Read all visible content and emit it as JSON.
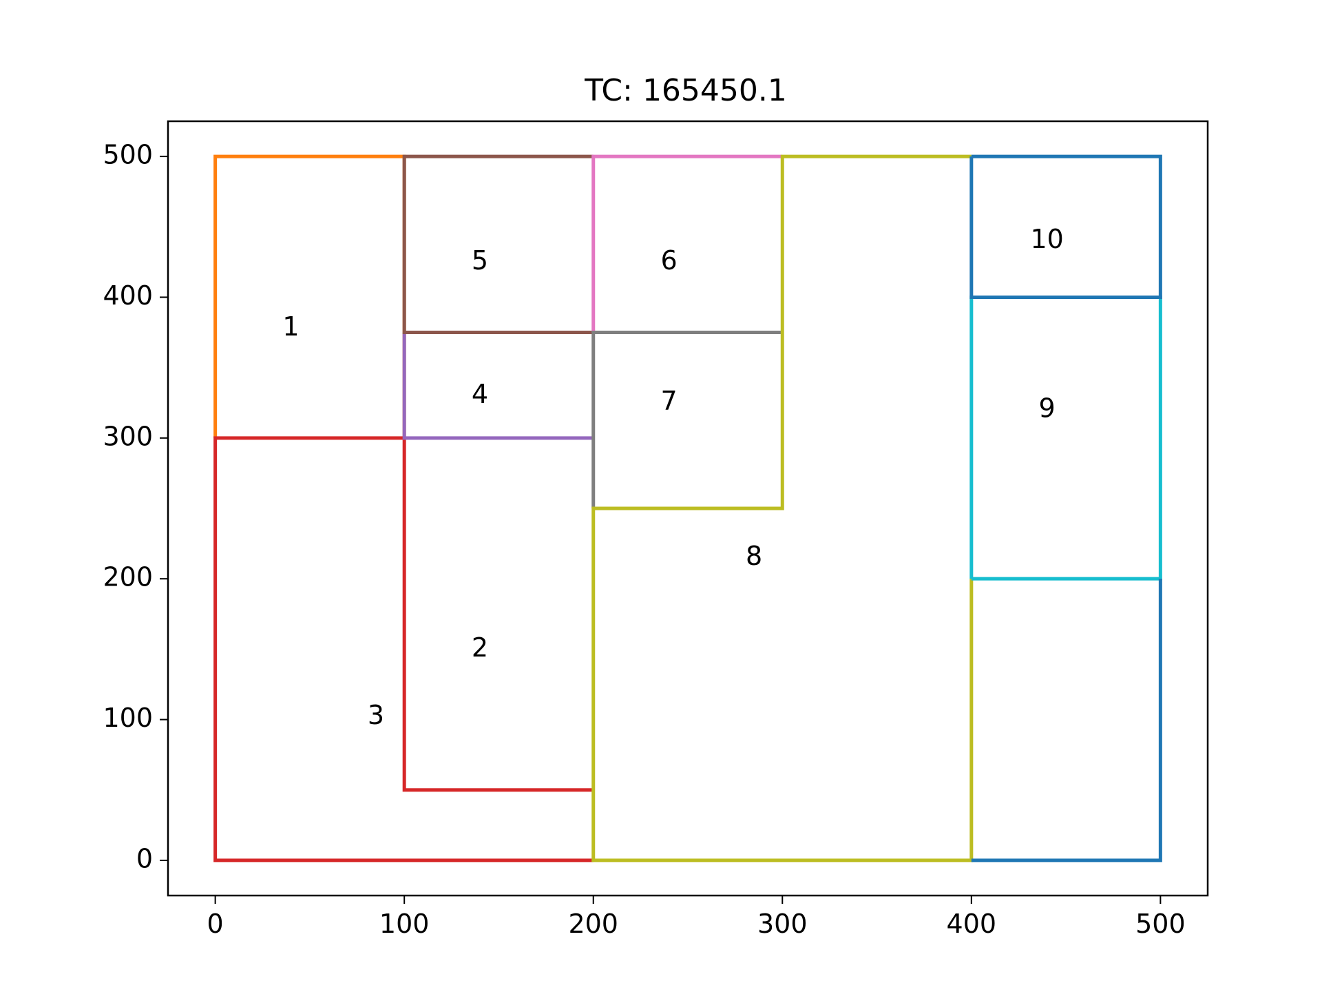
{
  "chart_data": {
    "type": "layout-plot",
    "title": "TC: 165450.1",
    "xlabel": "",
    "ylabel": "",
    "xlim": [
      -25,
      525
    ],
    "ylim": [
      -25,
      525
    ],
    "xticks": [
      0,
      100,
      200,
      300,
      400,
      500
    ],
    "yticks": [
      0,
      100,
      200,
      300,
      400,
      500
    ],
    "grid": false,
    "polygons": [
      {
        "id": "1",
        "color": "#ff7f0e",
        "points": [
          [
            0,
            300
          ],
          [
            0,
            500
          ],
          [
            100,
            500
          ],
          [
            100,
            300
          ]
        ],
        "label_pos": [
          40,
          378
        ]
      },
      {
        "id": "2",
        "color": "#d62728",
        "points": [
          [
            100,
            300
          ],
          [
            100,
            50
          ],
          [
            200,
            50
          ]
        ],
        "label_pos": [
          140,
          150
        ]
      },
      {
        "id": "3",
        "color": "#d62728",
        "points": [
          [
            100,
            300
          ],
          [
            0,
            300
          ],
          [
            0,
            0
          ],
          [
            200,
            0
          ]
        ],
        "label_pos": [
          85,
          102
        ]
      },
      {
        "id": "4",
        "color": "#9467bd",
        "points": [
          [
            100,
            375
          ],
          [
            100,
            300
          ],
          [
            200,
            300
          ]
        ],
        "label_pos": [
          140,
          330
        ]
      },
      {
        "id": "5",
        "color": "#8c564b",
        "points": [
          [
            200,
            375
          ],
          [
            100,
            375
          ],
          [
            100,
            500
          ],
          [
            200,
            500
          ]
        ],
        "label_pos": [
          140,
          425
        ]
      },
      {
        "id": "6",
        "color": "#e377c2",
        "points": [
          [
            200,
            375
          ],
          [
            200,
            500
          ],
          [
            300,
            500
          ]
        ],
        "label_pos": [
          240,
          425
        ]
      },
      {
        "id": "7",
        "color": "#7f7f7f",
        "points": [
          [
            300,
            375
          ],
          [
            200,
            375
          ],
          [
            200,
            250
          ]
        ],
        "label_pos": [
          240,
          325
        ]
      },
      {
        "id": "8",
        "color": "#bcbd22",
        "points": [
          [
            400,
            200
          ],
          [
            400,
            0
          ],
          [
            200,
            0
          ],
          [
            200,
            250
          ],
          [
            300,
            250
          ],
          [
            300,
            500
          ],
          [
            400,
            500
          ]
        ],
        "label_pos": [
          285,
          215
        ]
      },
      {
        "id": "9",
        "color": "#17becf",
        "points": [
          [
            400,
            200
          ],
          [
            400,
            400
          ],
          [
            500,
            400
          ],
          [
            500,
            200
          ],
          [
            400,
            200
          ]
        ],
        "label_pos": [
          440,
          320
        ]
      },
      {
        "id": "10",
        "color": "#1f77b4",
        "points": [
          [
            400,
            500
          ],
          [
            500,
            500
          ],
          [
            500,
            400
          ],
          [
            400,
            400
          ],
          [
            400,
            500
          ]
        ],
        "label_pos": [
          440,
          440
        ]
      },
      {
        "id": "",
        "color": "#1f77b4",
        "points": [
          [
            500,
            200
          ],
          [
            500,
            0
          ],
          [
            400,
            0
          ]
        ],
        "label_pos": null
      }
    ]
  }
}
